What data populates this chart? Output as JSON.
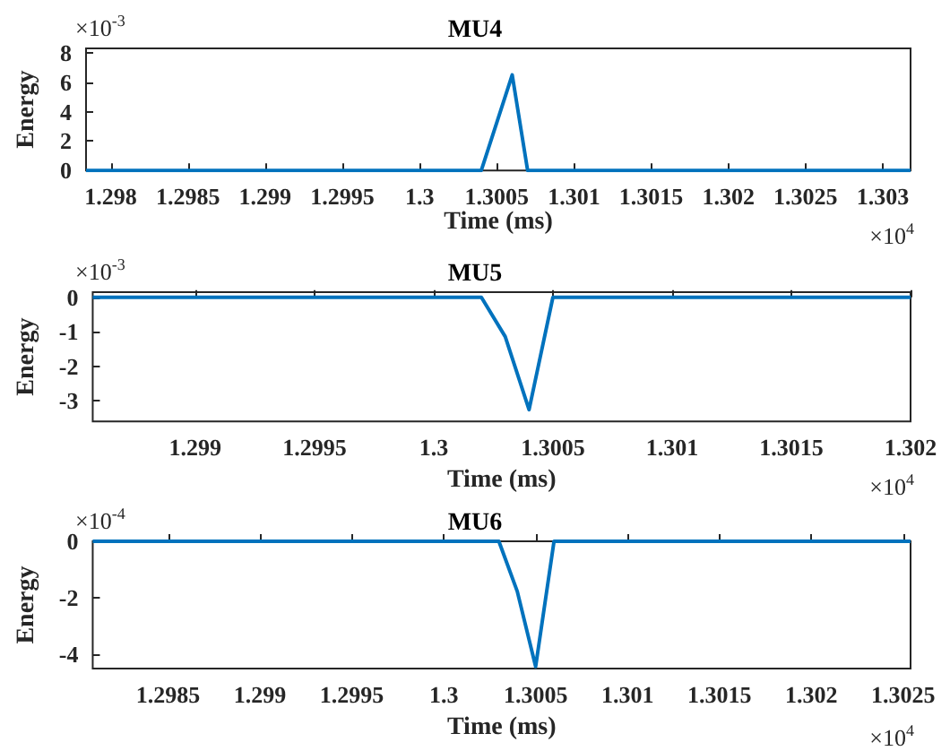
{
  "chart_data": [
    {
      "type": "line",
      "title": "MU4",
      "xlabel": "Time (ms)",
      "ylabel": "Energy",
      "series": [
        {
          "color": "#0072bd",
          "x": [
            1.29784,
            1.3004,
            1.3006,
            1.3007,
            1.30318
          ],
          "values": [
            0,
            0,
            6.5,
            0,
            0
          ]
        }
      ],
      "xlim": [
        1.29784,
        1.30318
      ],
      "xticks": [
        1.298,
        1.2985,
        1.299,
        1.2995,
        1.3,
        1.3005,
        1.301,
        1.3015,
        1.302,
        1.3025,
        1.303
      ],
      "ylim": [
        0,
        8.3
      ],
      "yticks": [
        0,
        2,
        4,
        6,
        8
      ],
      "annotations": [
        "×10$^{-3}$",
        "×10$^{4}$"
      ]
    },
    {
      "type": "line",
      "title": "MU5",
      "xlabel": "Time (ms)",
      "ylabel": "Energy",
      "series": [
        {
          "color": "#0072bd",
          "x": [
            1.29857,
            1.3002,
            1.3003,
            1.3004,
            1.3005,
            1.302
          ],
          "values": [
            0,
            0,
            -1.14,
            -3.26,
            0,
            0
          ]
        }
      ],
      "xlim": [
        1.29857,
        1.302
      ],
      "xticks": [
        1.299,
        1.2995,
        1.3,
        1.3005,
        1.301,
        1.3015,
        1.302
      ],
      "ylim": [
        -3.6,
        0.15
      ],
      "yticks": [
        -3,
        -2,
        -1,
        0
      ],
      "annotations": [
        "×10$^{-3}$",
        "×10$^{4}$"
      ]
    },
    {
      "type": "line",
      "title": "MU6",
      "xlabel": "Time (ms)",
      "ylabel": "Energy",
      "series": [
        {
          "color": "#0072bd",
          "x": [
            1.29809,
            1.3003,
            1.3004,
            1.3005,
            1.3006,
            1.30254
          ],
          "values": [
            0,
            0,
            -1.77,
            -4.43,
            0,
            0
          ]
        }
      ],
      "xlim": [
        1.29809,
        1.30254
      ],
      "xticks": [
        1.2985,
        1.299,
        1.2995,
        1.3,
        1.3005,
        1.301,
        1.3015,
        1.302,
        1.3025
      ],
      "ylim": [
        -4.5,
        0
      ],
      "yticks": [
        -4,
        -2,
        0
      ],
      "annotations": [
        "×10$^{-4}$",
        "×10$^{4}$"
      ]
    }
  ]
}
